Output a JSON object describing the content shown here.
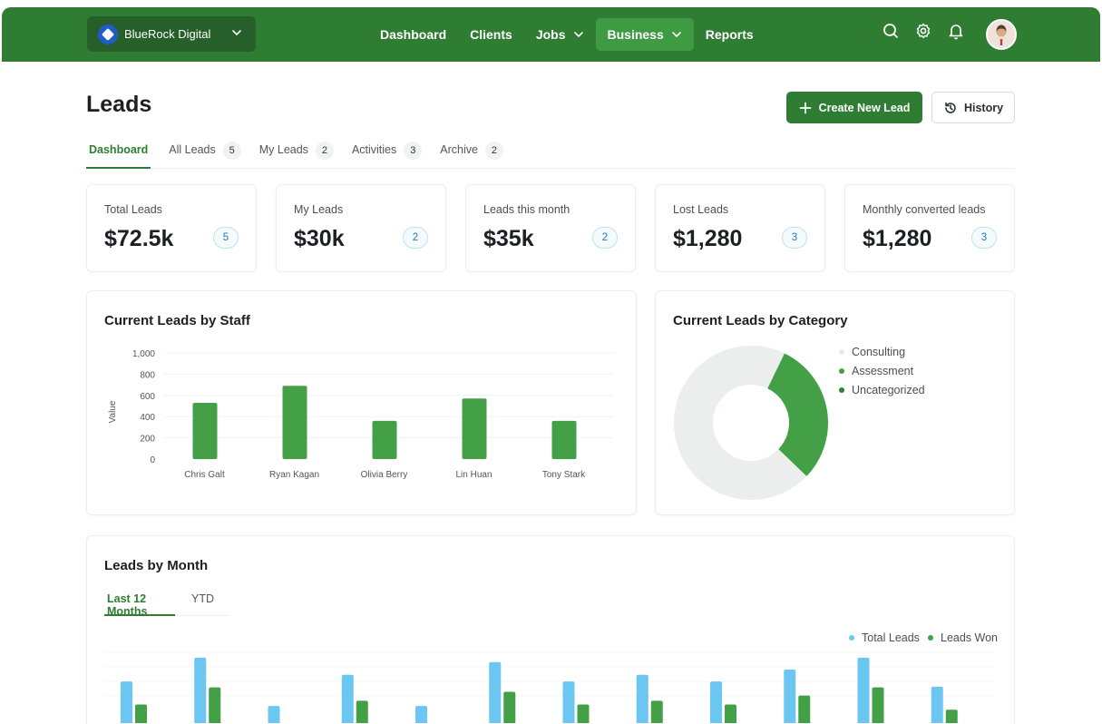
{
  "topbar": {
    "org_name": "BlueRock Digital",
    "nav": [
      {
        "label": "Dashboard",
        "has_dropdown": false,
        "active": false
      },
      {
        "label": "Clients",
        "has_dropdown": false,
        "active": false
      },
      {
        "label": "Jobs",
        "has_dropdown": true,
        "active": false
      },
      {
        "label": "Business",
        "has_dropdown": true,
        "active": true
      },
      {
        "label": "Reports",
        "has_dropdown": false,
        "active": false
      }
    ],
    "icons": [
      "search-icon",
      "gear-icon",
      "bell-icon"
    ]
  },
  "page": {
    "title": "Leads",
    "create_button": "Create New Lead",
    "history_button": "History"
  },
  "tabs": [
    {
      "label": "Dashboard",
      "count": "",
      "active": true
    },
    {
      "label": "All Leads",
      "count": "5",
      "active": false
    },
    {
      "label": "My Leads",
      "count": "2",
      "active": false
    },
    {
      "label": "Activities",
      "count": "3",
      "active": false
    },
    {
      "label": "Archive",
      "count": "2",
      "active": false
    }
  ],
  "stats": [
    {
      "label": "Total Leads",
      "value": "$72.5k",
      "badge": "5"
    },
    {
      "label": "My Leads",
      "value": "$30k",
      "badge": "2"
    },
    {
      "label": "Leads this month",
      "value": "$35k",
      "badge": "2"
    },
    {
      "label": "Lost Leads",
      "value": "$1,280",
      "badge": "3"
    },
    {
      "label": "Monthly converted leads",
      "value": "$1,280",
      "badge": "3"
    }
  ],
  "colors": {
    "brand_green": "#2f7d32",
    "bar_green": "#43a047",
    "light_blue": "#6cc6f2",
    "donut_grey": "#eceeed"
  },
  "chart_data": [
    {
      "type": "bar",
      "title": "Current Leads by Staff",
      "categories": [
        "Chris Galt",
        "Ryan Kagan",
        "Olivia Berry",
        "Lin Huan",
        "Tony Stark"
      ],
      "values": [
        530,
        690,
        360,
        570,
        360
      ],
      "ylabel": "Value",
      "ylim": [
        0,
        1000
      ],
      "yticks": [
        "0",
        "200",
        "400",
        "600",
        "800",
        "1,000"
      ],
      "grid": true
    },
    {
      "type": "pie",
      "title": "Current Leads by Category",
      "labels": [
        "Consulting",
        "Assessment",
        "Uncategorized"
      ],
      "values": [
        70,
        30,
        0
      ],
      "donut": true,
      "legend": "right"
    },
    {
      "type": "bar",
      "title": "Leads by Month",
      "tabs": [
        {
          "label": "Last 12 Months",
          "active": true
        },
        {
          "label": "YTD",
          "active": false
        }
      ],
      "series": [
        {
          "name": "Total Leads",
          "values": [
            56,
            88,
            23,
            65,
            23,
            82,
            56,
            65,
            56,
            72,
            88,
            49
          ]
        },
        {
          "name": "Leads Won",
          "values": [
            25,
            48,
            0,
            30,
            0,
            42,
            25,
            30,
            25,
            37,
            48,
            18
          ]
        }
      ],
      "ylim": [
        0,
        100
      ],
      "legend": "top-right"
    }
  ]
}
